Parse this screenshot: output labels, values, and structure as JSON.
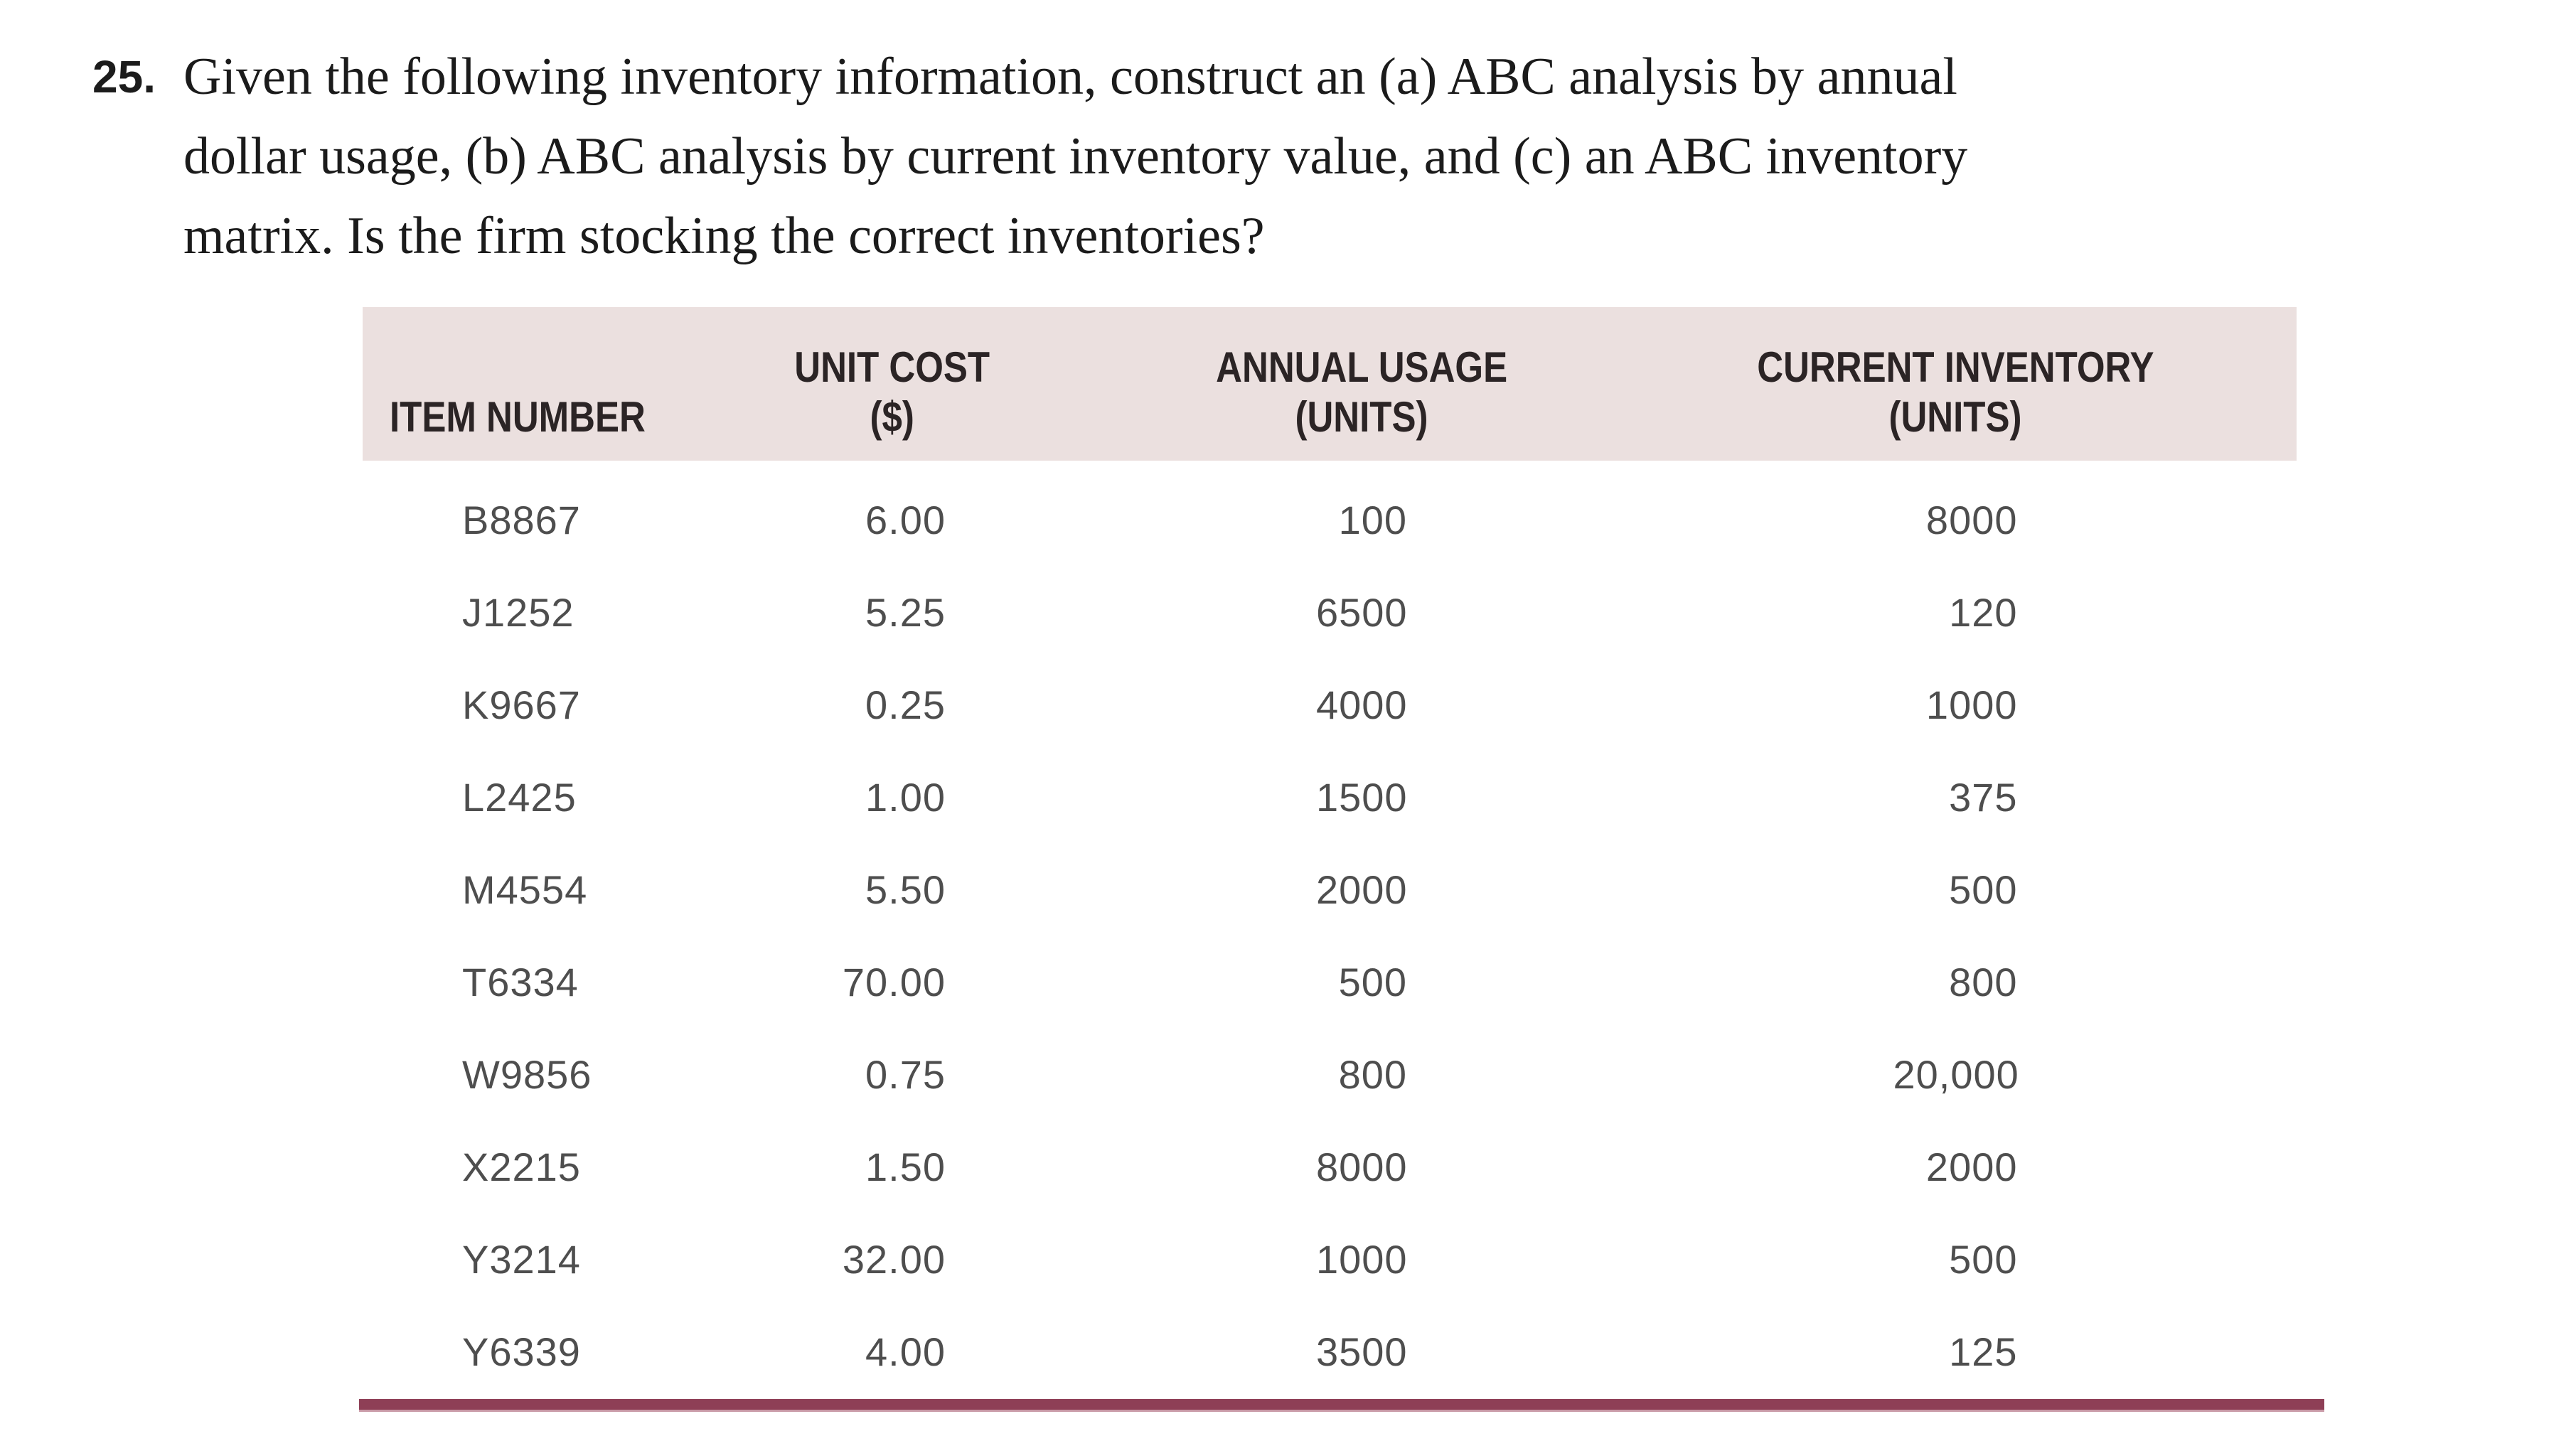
{
  "problem": {
    "number": "25.",
    "lines": [
      "Given the following inventory information, construct an (a) ABC analysis by annual",
      "dollar usage, (b) ABC analysis by current inventory value, and (c) an ABC inventory",
      "matrix. Is the firm stocking the correct inventories?"
    ]
  },
  "table": {
    "headers": {
      "item": {
        "line1": "",
        "line2": "ITEM NUMBER"
      },
      "unit_cost": {
        "line1": "UNIT COST",
        "line2": "($)"
      },
      "annual_usage": {
        "line1": "ANNUAL USAGE",
        "line2": "(UNITS)"
      },
      "current_inventory": {
        "line1": "CURRENT INVENTORY",
        "line2": "(UNITS)"
      }
    },
    "rows": [
      {
        "item": "B8867",
        "unit_cost": "6.00",
        "annual_usage": "100",
        "current_inventory": "8000"
      },
      {
        "item": "J1252",
        "unit_cost": "5.25",
        "annual_usage": "6500",
        "current_inventory": "120"
      },
      {
        "item": "K9667",
        "unit_cost": "0.25",
        "annual_usage": "4000",
        "current_inventory": "1000"
      },
      {
        "item": "L2425",
        "unit_cost": "1.00",
        "annual_usage": "1500",
        "current_inventory": "375"
      },
      {
        "item": "M4554",
        "unit_cost": "5.50",
        "annual_usage": "2000",
        "current_inventory": "500"
      },
      {
        "item": "T6334",
        "unit_cost": "70.00",
        "annual_usage": "500",
        "current_inventory": "800"
      },
      {
        "item": "W9856",
        "unit_cost": "0.75",
        "annual_usage": "800",
        "current_inventory": "20,000"
      },
      {
        "item": "X2215",
        "unit_cost": "1.50",
        "annual_usage": "8000",
        "current_inventory": "2000"
      },
      {
        "item": "Y3214",
        "unit_cost": "32.00",
        "annual_usage": "1000",
        "current_inventory": "500"
      },
      {
        "item": "Y6339",
        "unit_cost": "4.00",
        "annual_usage": "3500",
        "current_inventory": "125"
      }
    ]
  },
  "colors": {
    "header_background": "#ebe0df",
    "bottom_rule": "#8e3f56",
    "header_text": "#2b2425",
    "data_text": "#4e4e4e",
    "body_text": "#1b1b1b"
  }
}
